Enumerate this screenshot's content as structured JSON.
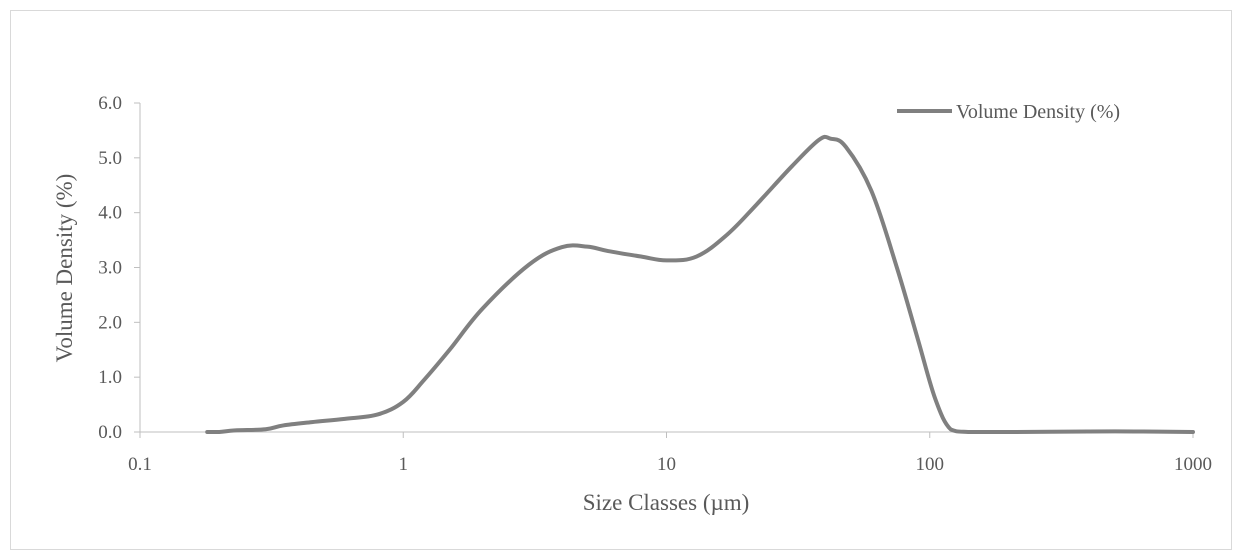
{
  "chart_data": {
    "type": "line",
    "title": "",
    "xlabel": "Size Classes (µm)",
    "ylabel": "Volume Density (%)",
    "x_scale": "log",
    "xlim": [
      0.1,
      1000
    ],
    "ylim": [
      0,
      6
    ],
    "x_tick_labels": [
      "0.1",
      "1",
      "10",
      "100",
      "1000"
    ],
    "y_tick_labels": [
      "0.0",
      "1.0",
      "2.0",
      "3.0",
      "4.0",
      "5.0",
      "6.0"
    ],
    "grid": false,
    "legend_position": "top-right",
    "series": [
      {
        "name": "Volume Density (%)",
        "color": "#808080",
        "points": [
          [
            0.18,
            0.0
          ],
          [
            0.2,
            0.0
          ],
          [
            0.23,
            0.03
          ],
          [
            0.3,
            0.05
          ],
          [
            0.35,
            0.12
          ],
          [
            0.45,
            0.18
          ],
          [
            0.6,
            0.24
          ],
          [
            0.8,
            0.32
          ],
          [
            1.0,
            0.55
          ],
          [
            1.2,
            0.95
          ],
          [
            1.5,
            1.5
          ],
          [
            2.0,
            2.25
          ],
          [
            3.0,
            3.05
          ],
          [
            4.0,
            3.37
          ],
          [
            5.0,
            3.38
          ],
          [
            6.0,
            3.3
          ],
          [
            8.0,
            3.2
          ],
          [
            10.0,
            3.13
          ],
          [
            13.0,
            3.2
          ],
          [
            17.0,
            3.6
          ],
          [
            22.0,
            4.15
          ],
          [
            30.0,
            4.85
          ],
          [
            38.0,
            5.33
          ],
          [
            42.0,
            5.35
          ],
          [
            48.0,
            5.2
          ],
          [
            60.0,
            4.4
          ],
          [
            75.0,
            3.0
          ],
          [
            90.0,
            1.7
          ],
          [
            105.0,
            0.6
          ],
          [
            120.0,
            0.05
          ],
          [
            140.0,
            0.0
          ],
          [
            200.0,
            0.0
          ],
          [
            400.0,
            0.01
          ],
          [
            600.0,
            0.01
          ],
          [
            1000.0,
            0.0
          ]
        ]
      }
    ]
  }
}
